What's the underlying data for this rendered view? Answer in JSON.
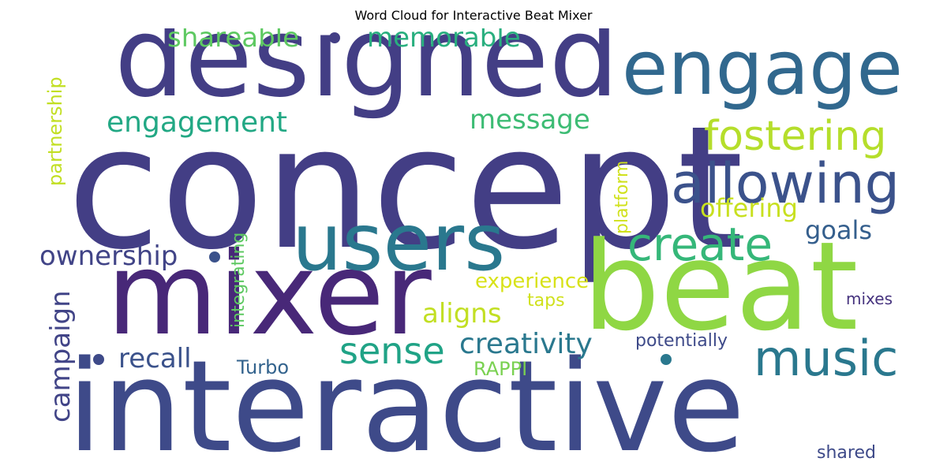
{
  "chart_data": {
    "type": "wordcloud",
    "title": "Word Cloud for Interactive Beat Mixer",
    "words": [
      {
        "text": "concept",
        "color": "#433e85"
      },
      {
        "text": "interactive",
        "color": "#3e4a89"
      },
      {
        "text": "designed",
        "color": "#433e85"
      },
      {
        "text": "mixer",
        "color": "#482878"
      },
      {
        "text": "beat",
        "color": "#8fd744"
      },
      {
        "text": "engage",
        "color": "#31688e"
      },
      {
        "text": "users",
        "color": "#2a788e"
      },
      {
        "text": "allowing",
        "color": "#3b528b"
      },
      {
        "text": "music",
        "color": "#2a788e"
      },
      {
        "text": "create",
        "color": "#35b779"
      },
      {
        "text": "fostering",
        "color": "#b5de2b"
      },
      {
        "text": "sense",
        "color": "#20a386"
      },
      {
        "text": "engagement",
        "color": "#22a884"
      },
      {
        "text": "creativity",
        "color": "#2a788e"
      },
      {
        "text": "shareable",
        "color": "#5ec962"
      },
      {
        "text": "memorable",
        "color": "#29af7f"
      },
      {
        "text": "message",
        "color": "#3dbc74"
      },
      {
        "text": "ownership",
        "color": "#414487"
      },
      {
        "text": "campaign",
        "color": "#414487"
      },
      {
        "text": "recall",
        "color": "#3b528b"
      },
      {
        "text": "aligns",
        "color": "#c2df23"
      },
      {
        "text": "offering",
        "color": "#c8e020"
      },
      {
        "text": "goals",
        "color": "#355f8d"
      },
      {
        "text": "partnership",
        "color": "#c2df23"
      },
      {
        "text": "experience",
        "color": "#d8e219"
      },
      {
        "text": "Turbo",
        "color": "#33638d"
      },
      {
        "text": "RAPPI",
        "color": "#7ad151"
      },
      {
        "text": "taps",
        "color": "#d0e11c"
      },
      {
        "text": "potentially",
        "color": "#3e4a89"
      },
      {
        "text": "integrating",
        "color": "#5ec962"
      },
      {
        "text": "platform",
        "color": "#d0e11c"
      },
      {
        "text": "mixes",
        "color": "#46337e"
      },
      {
        "text": "shared",
        "color": "#3e4a89"
      }
    ],
    "marks": [
      {
        "color": "#433e85"
      },
      {
        "color": "#3b528b"
      },
      {
        "color": "#3e4a89"
      },
      {
        "color": "#2a788e"
      }
    ]
  }
}
